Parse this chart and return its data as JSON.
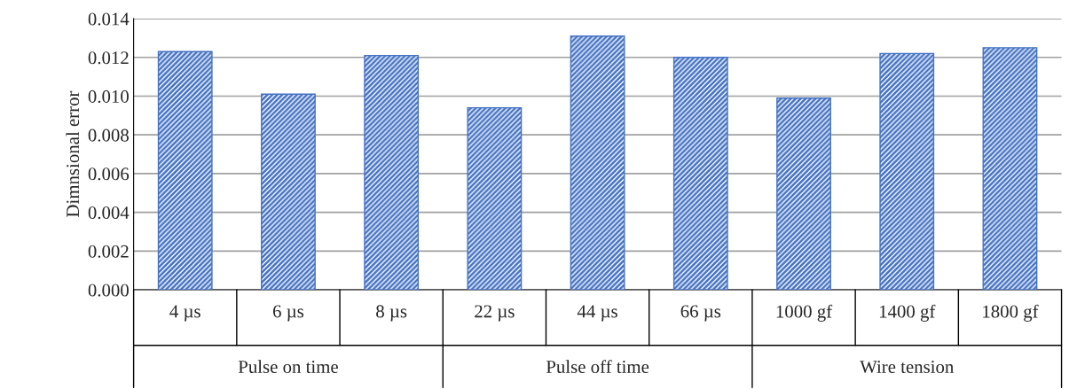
{
  "chart_data": {
    "type": "bar",
    "ylabel": "Dimnsional error",
    "categories": [
      "4 µs",
      "6 µs",
      "8 µs",
      "22 µs",
      "44 µs",
      "66 µs",
      "1000 gf",
      "1400 gf",
      "1800 gf"
    ],
    "values": [
      0.0123,
      0.0101,
      0.0121,
      0.0094,
      0.0131,
      0.012,
      0.0099,
      0.0122,
      0.0125
    ],
    "color": "#4472c4",
    "ylim": [
      0,
      0.014
    ],
    "yticks": [
      {
        "value": 0,
        "label": "0.000"
      },
      {
        "value": 0.002,
        "label": "0.002"
      },
      {
        "value": 0.004,
        "label": "0.004"
      },
      {
        "value": 0.006,
        "label": "0.006"
      },
      {
        "value": 0.008,
        "label": "0.008"
      },
      {
        "value": 0.01,
        "label": "0.010"
      },
      {
        "value": 0.012,
        "label": "0.012"
      },
      {
        "value": 0.014,
        "label": "0.014"
      }
    ],
    "grid": "y",
    "annotations": [
      "Pulse on time",
      "Pulse off time",
      "Wire tension"
    ]
  }
}
